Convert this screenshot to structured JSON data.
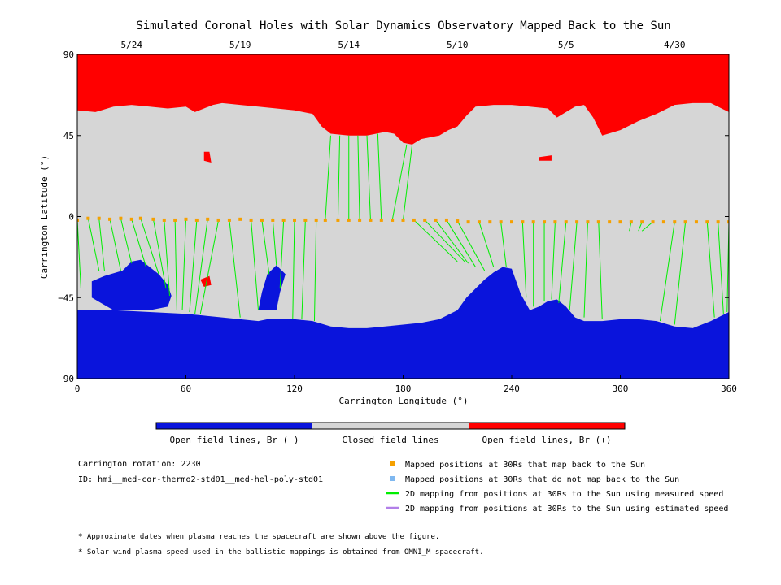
{
  "chart_data": {
    "type": "heatmap",
    "title": "Simulated Coronal Holes with Solar Dynamics Observatory Mapped Back to the Sun",
    "xlabel": "Carrington Longitude (°)",
    "ylabel": "Carrington Latitude (°)",
    "xlim": [
      0,
      360
    ],
    "ylim": [
      -90,
      90
    ],
    "x_ticks": [
      "0",
      "60",
      "120",
      "180",
      "240",
      "300",
      "360"
    ],
    "y_ticks": [
      "90",
      "45",
      "0",
      "−45",
      "−90"
    ],
    "date_axis": [
      {
        "label": "5/24",
        "lon": 30
      },
      {
        "label": "5/19",
        "lon": 90
      },
      {
        "label": "5/14",
        "lon": 150
      },
      {
        "label": "5/10",
        "lon": 210
      },
      {
        "label": "5/5",
        "lon": 270
      },
      {
        "label": "4/30",
        "lon": 330
      }
    ],
    "colorbar": [
      {
        "label": "Open field lines, Br (−)",
        "color": "#0a14dc"
      },
      {
        "label": "Closed field lines",
        "color": "#d6d6d6"
      },
      {
        "label": "Open field lines, Br (+)",
        "color": "#ff0000"
      }
    ],
    "north_boundary": [
      [
        0,
        59
      ],
      [
        10,
        58
      ],
      [
        20,
        61
      ],
      [
        30,
        62
      ],
      [
        40,
        61
      ],
      [
        50,
        60
      ],
      [
        60,
        61
      ],
      [
        65,
        58
      ],
      [
        70,
        60
      ],
      [
        75,
        62
      ],
      [
        80,
        63
      ],
      [
        90,
        62
      ],
      [
        100,
        61
      ],
      [
        110,
        60
      ],
      [
        120,
        59
      ],
      [
        130,
        57
      ],
      [
        135,
        50
      ],
      [
        140,
        46
      ],
      [
        150,
        45
      ],
      [
        160,
        45
      ],
      [
        170,
        47
      ],
      [
        175,
        46
      ],
      [
        180,
        41
      ],
      [
        185,
        40
      ],
      [
        190,
        43
      ],
      [
        200,
        45
      ],
      [
        205,
        48
      ],
      [
        210,
        50
      ],
      [
        215,
        56
      ],
      [
        220,
        61
      ],
      [
        230,
        62
      ],
      [
        240,
        62
      ],
      [
        250,
        61
      ],
      [
        260,
        60
      ],
      [
        265,
        55
      ],
      [
        270,
        58
      ],
      [
        275,
        61
      ],
      [
        280,
        62
      ],
      [
        285,
        55
      ],
      [
        290,
        45
      ],
      [
        300,
        48
      ],
      [
        310,
        53
      ],
      [
        320,
        57
      ],
      [
        330,
        62
      ],
      [
        340,
        63
      ],
      [
        350,
        63
      ],
      [
        360,
        58
      ]
    ],
    "south_boundary": [
      [
        0,
        -52
      ],
      [
        20,
        -52
      ],
      [
        40,
        -53
      ],
      [
        60,
        -54
      ],
      [
        70,
        -55
      ],
      [
        80,
        -56
      ],
      [
        90,
        -57
      ],
      [
        100,
        -58
      ],
      [
        105,
        -57
      ],
      [
        110,
        -57
      ],
      [
        120,
        -57
      ],
      [
        130,
        -58
      ],
      [
        140,
        -61
      ],
      [
        150,
        -62
      ],
      [
        160,
        -62
      ],
      [
        170,
        -61
      ],
      [
        180,
        -60
      ],
      [
        190,
        -59
      ],
      [
        200,
        -57
      ],
      [
        210,
        -52
      ],
      [
        215,
        -45
      ],
      [
        220,
        -40
      ],
      [
        225,
        -35
      ],
      [
        230,
        -31
      ],
      [
        235,
        -28
      ],
      [
        240,
        -29
      ],
      [
        245,
        -43
      ],
      [
        250,
        -52
      ],
      [
        255,
        -50
      ],
      [
        260,
        -47
      ],
      [
        265,
        -46
      ],
      [
        270,
        -50
      ],
      [
        275,
        -56
      ],
      [
        280,
        -58
      ],
      [
        290,
        -58
      ],
      [
        300,
        -57
      ],
      [
        310,
        -57
      ],
      [
        320,
        -58
      ],
      [
        330,
        -61
      ],
      [
        340,
        -62
      ],
      [
        350,
        -58
      ],
      [
        360,
        -53
      ]
    ],
    "blue_lobes": [
      [
        [
          15,
          -33
        ],
        [
          25,
          -30
        ],
        [
          30,
          -25
        ],
        [
          35,
          -24
        ],
        [
          40,
          -28
        ],
        [
          45,
          -32
        ],
        [
          50,
          -38
        ],
        [
          52,
          -44
        ],
        [
          50,
          -50
        ],
        [
          40,
          -52
        ],
        [
          20,
          -52
        ],
        [
          8,
          -45
        ],
        [
          8,
          -36
        ]
      ],
      [
        [
          100,
          -52
        ],
        [
          102,
          -42
        ],
        [
          105,
          -32
        ],
        [
          110,
          -27
        ],
        [
          115,
          -32
        ],
        [
          112,
          -42
        ],
        [
          110,
          -52
        ]
      ]
    ],
    "red_spots": [
      [
        [
          68,
          -35
        ],
        [
          73,
          -33
        ],
        [
          74,
          -38
        ],
        [
          70,
          -39
        ]
      ]
    ],
    "red_patches_north": [
      [
        [
          70,
          36
        ],
        [
          73,
          36
        ],
        [
          74,
          30
        ],
        [
          70,
          31
        ]
      ],
      [
        [
          255,
          33
        ],
        [
          262,
          34
        ],
        [
          262,
          31
        ],
        [
          255,
          31
        ]
      ]
    ],
    "mapped_positions_30Rs": [
      [
        0,
        -2
      ],
      [
        6,
        -1
      ],
      [
        12,
        -1
      ],
      [
        18,
        -1.5
      ],
      [
        24,
        -1
      ],
      [
        30,
        -1.5
      ],
      [
        35,
        -1
      ],
      [
        42,
        -1.5
      ],
      [
        48,
        -2
      ],
      [
        54,
        -2
      ],
      [
        60,
        -1.5
      ],
      [
        66,
        -2
      ],
      [
        72,
        -1.5
      ],
      [
        78,
        -2
      ],
      [
        84,
        -2
      ],
      [
        90,
        -1.5
      ],
      [
        96,
        -2
      ],
      [
        102,
        -2
      ],
      [
        108,
        -2
      ],
      [
        114,
        -2
      ],
      [
        120,
        -2
      ],
      [
        126,
        -2
      ],
      [
        132,
        -2
      ],
      [
        137,
        -2
      ],
      [
        144,
        -2
      ],
      [
        150,
        -2
      ],
      [
        156,
        -2
      ],
      [
        162,
        -2
      ],
      [
        168,
        -2
      ],
      [
        174,
        -2
      ],
      [
        180,
        -2
      ],
      [
        186,
        -2
      ],
      [
        192,
        -2
      ],
      [
        198,
        -2
      ],
      [
        204,
        -2
      ],
      [
        210,
        -2.5
      ],
      [
        216,
        -3
      ],
      [
        222,
        -3
      ],
      [
        228,
        -3
      ],
      [
        234,
        -3
      ],
      [
        240,
        -3
      ],
      [
        246,
        -3
      ],
      [
        252,
        -3
      ],
      [
        258,
        -3
      ],
      [
        264,
        -3
      ],
      [
        270,
        -3
      ],
      [
        276,
        -3
      ],
      [
        282,
        -3
      ],
      [
        288,
        -3
      ],
      [
        294,
        -3
      ],
      [
        300,
        -3
      ],
      [
        306,
        -3
      ],
      [
        312,
        -3
      ],
      [
        318,
        -3
      ],
      [
        324,
        -3
      ],
      [
        330,
        -3
      ],
      [
        336,
        -3
      ],
      [
        342,
        -3
      ],
      [
        348,
        -3
      ],
      [
        354,
        -3
      ],
      [
        360,
        -3
      ]
    ],
    "field_line_footpoints": [
      [
        [
          0,
          -2
        ],
        [
          2,
          -40
        ]
      ],
      [
        [
          6,
          -1
        ],
        [
          12,
          -30
        ]
      ],
      [
        [
          12,
          -1
        ],
        [
          15,
          -30
        ]
      ],
      [
        [
          18,
          -1.5
        ],
        [
          24,
          -30
        ]
      ],
      [
        [
          24,
          -1
        ],
        [
          30,
          -26
        ]
      ],
      [
        [
          30,
          -1.5
        ],
        [
          38,
          -28
        ]
      ],
      [
        [
          35,
          -1
        ],
        [
          45,
          -32
        ]
      ],
      [
        [
          42,
          -1.5
        ],
        [
          49,
          -40
        ]
      ],
      [
        [
          48,
          -2
        ],
        [
          51,
          -44
        ]
      ],
      [
        [
          54,
          -2
        ],
        [
          55,
          -52
        ]
      ],
      [
        [
          60,
          -1.5
        ],
        [
          58,
          -52
        ]
      ],
      [
        [
          66,
          -2
        ],
        [
          62,
          -53
        ]
      ],
      [
        [
          72,
          -1.5
        ],
        [
          65,
          -54
        ]
      ],
      [
        [
          78,
          -2
        ],
        [
          68,
          -54
        ]
      ],
      [
        [
          84,
          -2
        ],
        [
          90,
          -56
        ]
      ],
      [
        [
          96,
          -2
        ],
        [
          100,
          -52
        ]
      ],
      [
        [
          102,
          -2
        ],
        [
          106,
          -32
        ]
      ],
      [
        [
          108,
          -2
        ],
        [
          110,
          -27
        ]
      ],
      [
        [
          114,
          -2
        ],
        [
          112,
          -40
        ]
      ],
      [
        [
          120,
          -2
        ],
        [
          119,
          -57
        ]
      ],
      [
        [
          126,
          -2
        ],
        [
          124,
          -57
        ]
      ],
      [
        [
          132,
          -2
        ],
        [
          131,
          -58
        ]
      ],
      [
        [
          137,
          -2
        ],
        [
          140,
          45
        ]
      ],
      [
        [
          144,
          -2
        ],
        [
          145,
          45
        ]
      ],
      [
        [
          150,
          -2
        ],
        [
          150,
          45
        ]
      ],
      [
        [
          156,
          -2
        ],
        [
          155,
          45
        ]
      ],
      [
        [
          162,
          -2
        ],
        [
          160,
          45
        ]
      ],
      [
        [
          168,
          -2
        ],
        [
          166,
          46
        ]
      ],
      [
        [
          174,
          -2
        ],
        [
          182,
          40
        ]
      ],
      [
        [
          180,
          -2
        ],
        [
          185,
          40
        ]
      ],
      [
        [
          186,
          -2
        ],
        [
          210,
          -25
        ]
      ],
      [
        [
          192,
          -2
        ],
        [
          214,
          -25
        ]
      ],
      [
        [
          198,
          -2
        ],
        [
          216,
          -26
        ]
      ],
      [
        [
          204,
          -2
        ],
        [
          220,
          -28
        ]
      ],
      [
        [
          210,
          -2.5
        ],
        [
          225,
          -30
        ]
      ],
      [
        [
          222,
          -3
        ],
        [
          230,
          -28
        ]
      ],
      [
        [
          234,
          -3
        ],
        [
          237,
          -28
        ]
      ],
      [
        [
          246,
          -3
        ],
        [
          248,
          -45
        ]
      ],
      [
        [
          252,
          -3
        ],
        [
          252,
          -50
        ]
      ],
      [
        [
          258,
          -3
        ],
        [
          258,
          -47
        ]
      ],
      [
        [
          264,
          -3
        ],
        [
          262,
          -46
        ]
      ],
      [
        [
          270,
          -3
        ],
        [
          266,
          -48
        ]
      ],
      [
        [
          276,
          -3
        ],
        [
          272,
          -52
        ]
      ],
      [
        [
          282,
          -3
        ],
        [
          280,
          -56
        ]
      ],
      [
        [
          288,
          -3
        ],
        [
          290,
          -57
        ]
      ],
      [
        [
          306,
          -3
        ],
        [
          305,
          -8
        ]
      ],
      [
        [
          312,
          -3
        ],
        [
          310,
          -8
        ]
      ],
      [
        [
          318,
          -3
        ],
        [
          312,
          -8
        ]
      ],
      [
        [
          330,
          -3
        ],
        [
          322,
          -58
        ]
      ],
      [
        [
          336,
          -3
        ],
        [
          330,
          -60
        ]
      ],
      [
        [
          348,
          -3
        ],
        [
          352,
          -56
        ]
      ],
      [
        [
          354,
          -3
        ],
        [
          357,
          -54
        ]
      ],
      [
        [
          360,
          -3
        ],
        [
          359,
          -53
        ]
      ]
    ]
  },
  "legend": {
    "items": [
      {
        "label": "Mapped positions at 30Rs that map back to the Sun",
        "color": "#f5a000",
        "kind": "square"
      },
      {
        "label": "Mapped positions at 30Rs that do not map back to the Sun",
        "color": "#7fb8f0",
        "kind": "square"
      },
      {
        "label": "2D mapping from positions at 30Rs to the Sun using measured speed",
        "color": "#00ee00",
        "kind": "line"
      },
      {
        "label": "2D mapping from positions at 30Rs to the Sun using estimated speed",
        "color": "#b27fe8",
        "kind": "line"
      }
    ]
  },
  "info": {
    "rotation": "Carrington rotation: 2230",
    "id": "ID: hmi__med-cor-thermo2-std01__med-hel-poly-std01"
  },
  "footnotes": [
    "* Approximate dates when plasma reaches the spacecraft are shown above the figure.",
    "* Solar wind plasma speed used in the ballistic mappings is obtained from OMNI_M spacecraft."
  ]
}
